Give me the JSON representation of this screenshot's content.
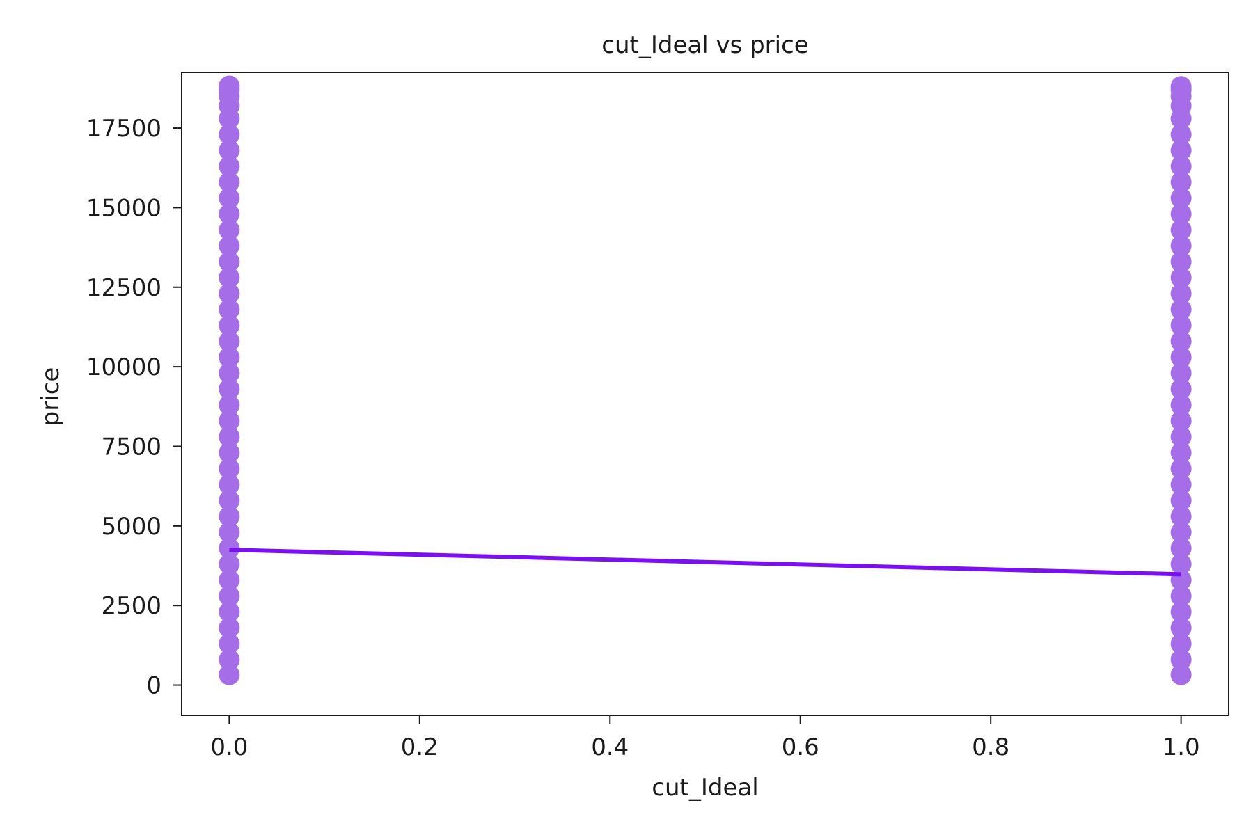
{
  "chart_data": {
    "type": "scatter",
    "title": "cut_Ideal vs price",
    "xlabel": "cut_Ideal",
    "ylabel": "price",
    "xlim": [
      -0.05,
      1.05
    ],
    "ylim": [
      -950,
      19250
    ],
    "xticks": [
      0.0,
      0.2,
      0.4,
      0.6,
      0.8,
      1.0
    ],
    "xtick_labels": [
      "0.0",
      "0.2",
      "0.4",
      "0.6",
      "0.8",
      "1.0"
    ],
    "yticks": [
      0,
      2500,
      5000,
      7500,
      10000,
      12500,
      15000,
      17500
    ],
    "ytick_labels": [
      "0",
      "2500",
      "5000",
      "7500",
      "10000",
      "12500",
      "15000",
      "17500"
    ],
    "grid": false,
    "series": [
      {
        "kind": "points",
        "color": "#a56ee8",
        "x": [
          0,
          0,
          0,
          0,
          0,
          0,
          0,
          0,
          0,
          0,
          0,
          0,
          0,
          0,
          0,
          0,
          0,
          0,
          0,
          0,
          0,
          0,
          0,
          0,
          0,
          0,
          0,
          0,
          0,
          0,
          0,
          0,
          0,
          0,
          0,
          0,
          0,
          0,
          0,
          0,
          1,
          1,
          1,
          1,
          1,
          1,
          1,
          1,
          1,
          1,
          1,
          1,
          1,
          1,
          1,
          1,
          1,
          1,
          1,
          1,
          1,
          1,
          1,
          1,
          1,
          1,
          1,
          1,
          1,
          1,
          1,
          1,
          1,
          1,
          1,
          1,
          1,
          1,
          1,
          1
        ],
        "y": [
          326,
          800,
          1300,
          1800,
          2300,
          2800,
          3300,
          3800,
          4300,
          4800,
          5300,
          5800,
          6300,
          6800,
          7300,
          7800,
          8300,
          8800,
          9300,
          9800,
          10300,
          10800,
          11300,
          11800,
          12300,
          12800,
          13300,
          13800,
          14300,
          14800,
          15300,
          15800,
          16300,
          16800,
          17300,
          17800,
          18200,
          18500,
          18700,
          18823,
          326,
          800,
          1300,
          1800,
          2300,
          2800,
          3300,
          3800,
          4300,
          4800,
          5300,
          5800,
          6300,
          6800,
          7300,
          7800,
          8300,
          8800,
          9300,
          9800,
          10300,
          10800,
          11300,
          11800,
          12300,
          12800,
          13300,
          13800,
          14300,
          14800,
          15300,
          15800,
          16300,
          16800,
          17300,
          17800,
          18200,
          18500,
          18700,
          18806
        ]
      },
      {
        "kind": "line",
        "color": "#7a0ff0",
        "x": [
          0,
          1
        ],
        "y": [
          4250,
          3480
        ]
      }
    ]
  }
}
